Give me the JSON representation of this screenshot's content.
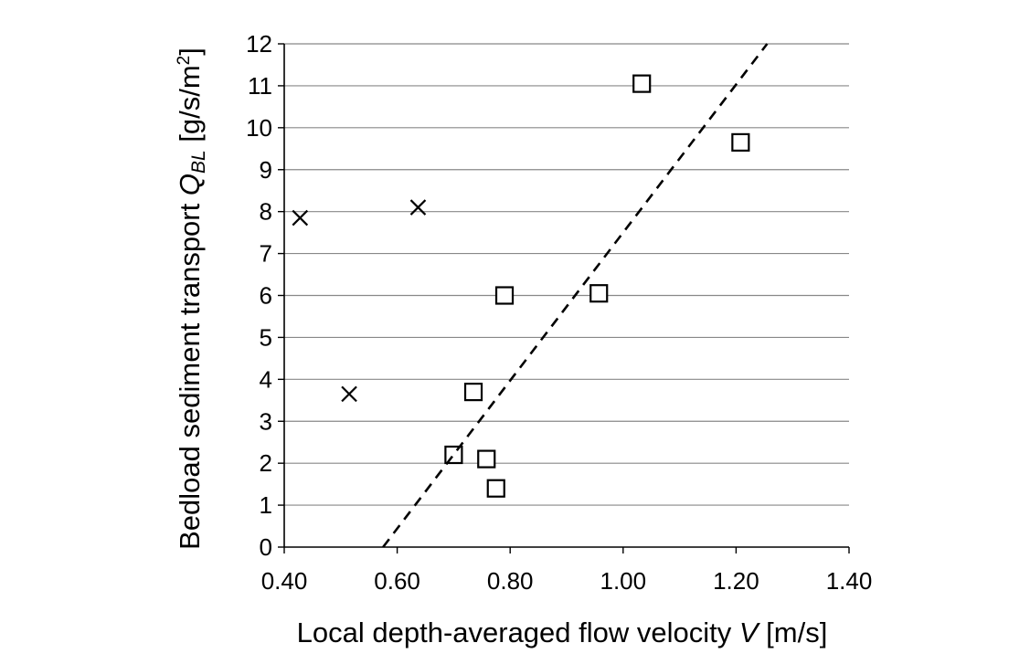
{
  "chart_data": {
    "type": "scatter",
    "title": "",
    "xlabel": {
      "main": "Local depth-averaged flow velocity ",
      "symbol": "V",
      "unit": " [m/s]"
    },
    "ylabel": {
      "main": "Bedload sediment transport ",
      "symbol": "Q",
      "subscript": "BL",
      "unit_pre": " [g/s/m",
      "unit_sup": "2",
      "unit_post": "]"
    },
    "xlim": [
      0.4,
      1.4
    ],
    "ylim": [
      0,
      12
    ],
    "x_ticks": [
      "0.40",
      "0.60",
      "0.80",
      "1.00",
      "1.20",
      "1.40"
    ],
    "y_ticks": [
      "0",
      "1",
      "2",
      "3",
      "4",
      "5",
      "6",
      "7",
      "8",
      "9",
      "10",
      "11",
      "12"
    ],
    "grid": "horizontal",
    "legend": "none",
    "series": [
      {
        "marker": "square",
        "points": [
          {
            "x": 0.7,
            "y": 2.2
          },
          {
            "x": 0.735,
            "y": 3.7
          },
          {
            "x": 0.758,
            "y": 2.1
          },
          {
            "x": 0.775,
            "y": 1.4
          },
          {
            "x": 0.79,
            "y": 6.0
          },
          {
            "x": 0.957,
            "y": 6.05
          },
          {
            "x": 1.033,
            "y": 11.05
          },
          {
            "x": 1.208,
            "y": 9.65
          }
        ]
      },
      {
        "marker": "x",
        "points": [
          {
            "x": 0.428,
            "y": 7.85
          },
          {
            "x": 0.515,
            "y": 3.65
          },
          {
            "x": 0.637,
            "y": 8.1
          }
        ]
      },
      {
        "type": "line",
        "style": "dashed",
        "points": [
          {
            "x": 0.575,
            "y": 0
          },
          {
            "x": 1.255,
            "y": 12
          }
        ]
      }
    ],
    "colors": {
      "axis": "#000000",
      "grid": "#888888",
      "marker": "#000000"
    }
  }
}
